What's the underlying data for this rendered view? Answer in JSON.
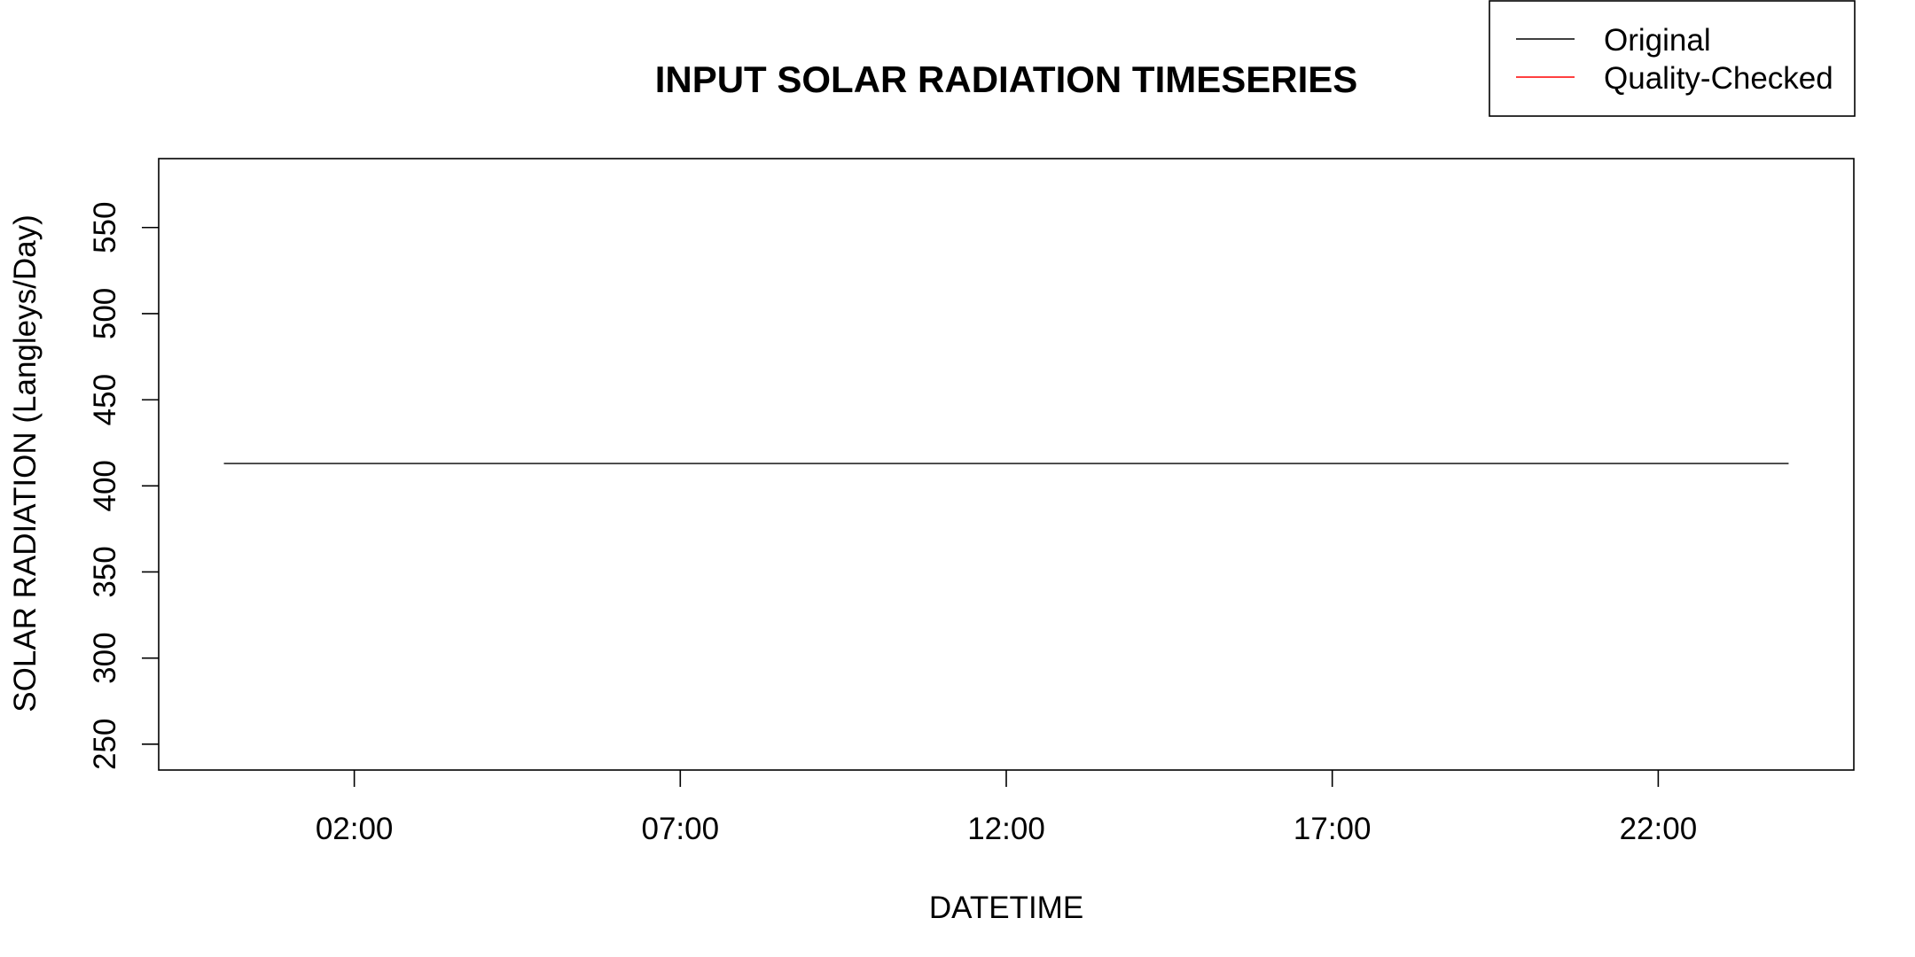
{
  "chart_data": {
    "type": "line",
    "title": "INPUT SOLAR RADIATION TIMESERIES",
    "xlabel": "DATETIME",
    "ylabel": "SOLAR RADIATION (Langleys/Day)",
    "x_unit": "hour of day",
    "xlim": [
      -1,
      25
    ],
    "ylim": [
      235,
      590
    ],
    "x_ticks": [
      {
        "label": "02:00",
        "value": 2
      },
      {
        "label": "07:00",
        "value": 7
      },
      {
        "label": "12:00",
        "value": 12
      },
      {
        "label": "17:00",
        "value": 17
      },
      {
        "label": "22:00",
        "value": 22
      }
    ],
    "y_ticks": [
      250,
      300,
      350,
      400,
      450,
      500,
      550
    ],
    "series": [
      {
        "name": "Original",
        "color": "#000000",
        "x": [
          0,
          24
        ],
        "y": [
          413,
          413
        ]
      },
      {
        "name": "Quality-Checked",
        "color": "#ff0000",
        "x": [],
        "y": []
      }
    ],
    "legend": {
      "placement": "top-right",
      "entries": [
        {
          "label": "Original",
          "color": "#000000"
        },
        {
          "label": "Quality-Checked",
          "color": "#ff0000"
        }
      ]
    },
    "grid": false
  }
}
